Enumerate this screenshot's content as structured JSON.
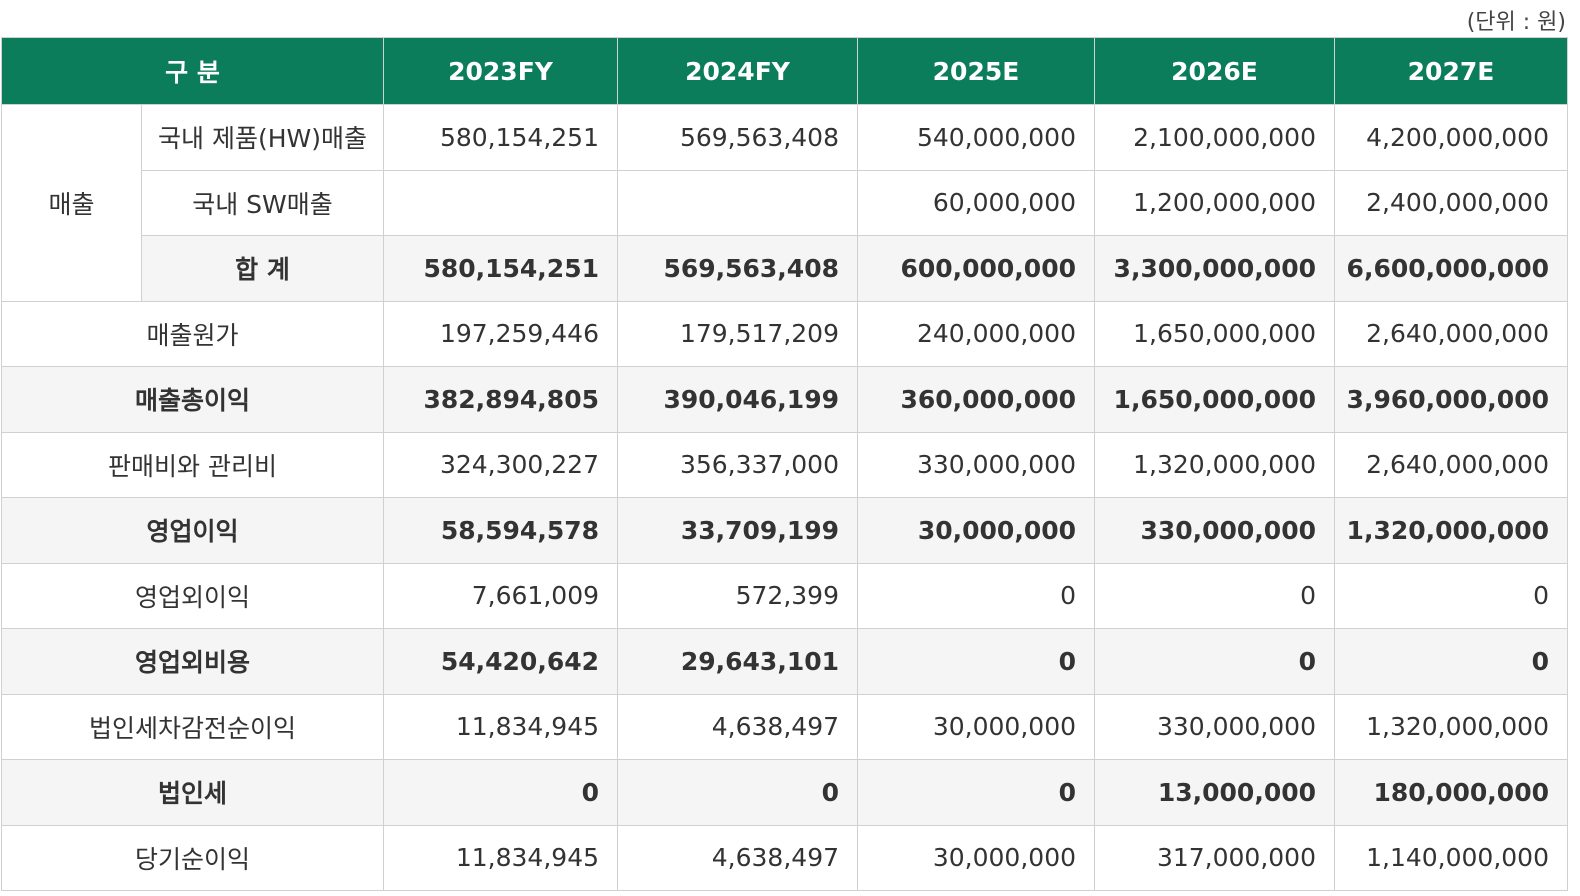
{
  "unit": "(단위 : 원)",
  "header": [
    "구 분",
    "2023FY",
    "2024FY",
    "2025E",
    "2026E",
    "2027E"
  ],
  "sales": {
    "label": "매출",
    "rows": [
      {
        "label": "국내 제품(HW)매출",
        "values": [
          "580,154,251",
          "569,563,408",
          "540,000,000",
          "2,100,000,000",
          "4,200,000,000"
        ]
      },
      {
        "label": "국내 SW매출",
        "values": [
          null,
          null,
          "60,000,000",
          "1,200,000,000",
          "2,400,000,000"
        ]
      },
      {
        "label": "합 계",
        "values": [
          "580,154,251",
          "569,563,408",
          "600,000,000",
          "3,300,000,000",
          "6,600,000,000"
        ]
      }
    ]
  },
  "rows": [
    {
      "label": "매출원가",
      "values": [
        "197,259,446",
        "179,517,209",
        "240,000,000",
        "1,650,000,000",
        "2,640,000,000"
      ]
    },
    {
      "label": "매출총이익",
      "values": [
        "382,894,805",
        "390,046,199",
        "360,000,000",
        "1,650,000,000",
        "3,960,000,000"
      ]
    },
    {
      "label": "판매비와 관리비",
      "values": [
        "324,300,227",
        "356,337,000",
        "330,000,000",
        "1,320,000,000",
        "2,640,000,000"
      ]
    },
    {
      "label": "영업이익",
      "values": [
        "58,594,578",
        "33,709,199",
        "30,000,000",
        "330,000,000",
        "1,320,000,000"
      ]
    },
    {
      "label": "영업외이익",
      "values": [
        "7,661,009",
        "572,399",
        "0",
        "0",
        "0"
      ]
    },
    {
      "label": "영업외비용",
      "values": [
        "54,420,642",
        "29,643,101",
        "0",
        "0",
        "0"
      ]
    },
    {
      "label": "법인세차감전순이익",
      "values": [
        "11,834,945",
        "4,638,497",
        "30,000,000",
        "330,000,000",
        "1,320,000,000"
      ]
    },
    {
      "label": "법인세",
      "values": [
        "0",
        "0",
        "0",
        "13,000,000",
        "180,000,000"
      ]
    },
    {
      "label": "당기순이익",
      "values": [
        "11,834,945",
        "4,638,497",
        "30,000,000",
        "317,000,000",
        "1,140,000,000"
      ]
    }
  ]
}
